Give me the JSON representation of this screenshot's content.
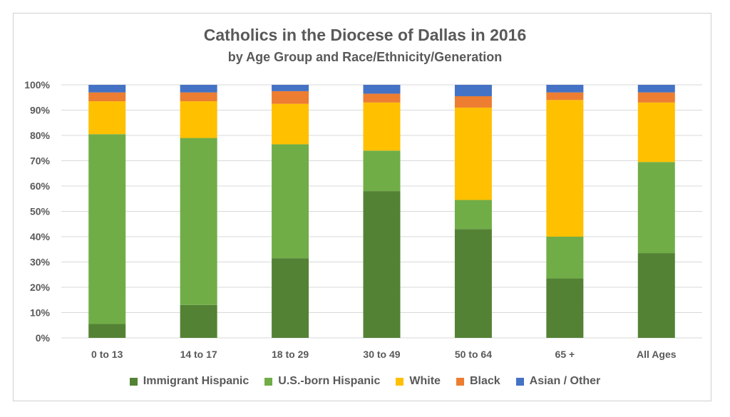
{
  "chart_data": {
    "type": "bar",
    "stacked": true,
    "title": "Catholics in the Diocese of Dallas in 2016",
    "subtitle": "by Age Group and Race/Ethnicity/Generation",
    "categories": [
      "0 to 13",
      "14 to 17",
      "18 to 29",
      "30 to 49",
      "50 to 64",
      "65 +",
      "All Ages"
    ],
    "yticks": [
      "0%",
      "10%",
      "20%",
      "30%",
      "40%",
      "50%",
      "60%",
      "70%",
      "80%",
      "90%",
      "100%"
    ],
    "ylim": [
      0,
      100
    ],
    "grid": true,
    "legend_position": "bottom",
    "series": [
      {
        "name": "Immigrant Hispanic",
        "color": "#548235",
        "values": [
          5.5,
          13,
          31.5,
          58,
          43,
          23.5,
          33.5
        ]
      },
      {
        "name": "U.S.-born Hispanic",
        "color": "#70AD47",
        "values": [
          75,
          66,
          45,
          16,
          11.5,
          16.5,
          36
        ]
      },
      {
        "name": "White",
        "color": "#FFC000",
        "values": [
          13,
          14.5,
          16,
          19,
          36.5,
          54,
          23.5
        ]
      },
      {
        "name": "Black",
        "color": "#ED7D31",
        "values": [
          3.5,
          3.5,
          5,
          3.5,
          4.5,
          3,
          4
        ]
      },
      {
        "name": "Asian / Other",
        "color": "#4472C4",
        "values": [
          3,
          3,
          2.5,
          3.5,
          4.5,
          3,
          3
        ]
      }
    ]
  }
}
